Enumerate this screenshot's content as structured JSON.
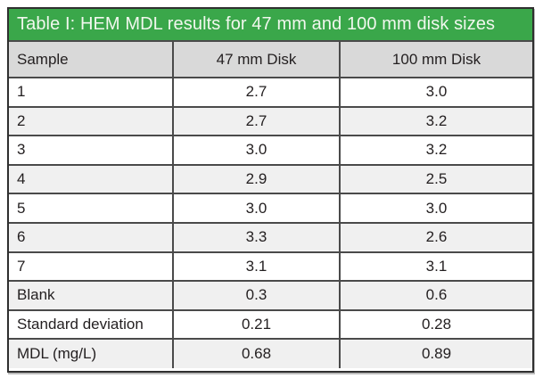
{
  "table": {
    "title": "Table I: HEM MDL results for 47 mm and 100 mm disk sizes",
    "columns": [
      "Sample",
      "47 mm Disk",
      "100 mm Disk"
    ],
    "rows": [
      [
        "1",
        "2.7",
        "3.0"
      ],
      [
        "2",
        "2.7",
        "3.2"
      ],
      [
        "3",
        "3.0",
        "3.2"
      ],
      [
        "4",
        "2.9",
        "2.5"
      ],
      [
        "5",
        "3.0",
        "3.0"
      ],
      [
        "6",
        "3.3",
        "2.6"
      ],
      [
        "7",
        "3.1",
        "3.1"
      ],
      [
        "Blank",
        "0.3",
        "0.6"
      ],
      [
        "Standard deviation",
        "0.21",
        "0.28"
      ],
      [
        "MDL (mg/L)",
        "0.68",
        "0.89"
      ]
    ]
  },
  "colors": {
    "title_bg": "#3aa74a",
    "title_text": "#f1f7ee",
    "header_bg": "#d9d9d9",
    "row_alt_bg": "#f0f0f0",
    "row_bg": "#ffffff",
    "grid_border": "#4a4a4a",
    "outer_border": "#2f2f2f",
    "text": "#231f20"
  },
  "chart_data": {
    "type": "table",
    "title": "Table I: HEM MDL results for 47 mm and 100 mm disk sizes",
    "columns": [
      "Sample",
      "47 mm Disk",
      "100 mm Disk"
    ],
    "rows": [
      {
        "sample": "1",
        "disk_47mm": 2.7,
        "disk_100mm": 3.0
      },
      {
        "sample": "2",
        "disk_47mm": 2.7,
        "disk_100mm": 3.2
      },
      {
        "sample": "3",
        "disk_47mm": 3.0,
        "disk_100mm": 3.2
      },
      {
        "sample": "4",
        "disk_47mm": 2.9,
        "disk_100mm": 2.5
      },
      {
        "sample": "5",
        "disk_47mm": 3.0,
        "disk_100mm": 3.0
      },
      {
        "sample": "6",
        "disk_47mm": 3.3,
        "disk_100mm": 2.6
      },
      {
        "sample": "7",
        "disk_47mm": 3.1,
        "disk_100mm": 3.1
      },
      {
        "sample": "Blank",
        "disk_47mm": 0.3,
        "disk_100mm": 0.6
      },
      {
        "sample": "Standard deviation",
        "disk_47mm": 0.21,
        "disk_100mm": 0.28
      },
      {
        "sample": "MDL (mg/L)",
        "disk_47mm": 0.68,
        "disk_100mm": 0.89
      }
    ]
  }
}
